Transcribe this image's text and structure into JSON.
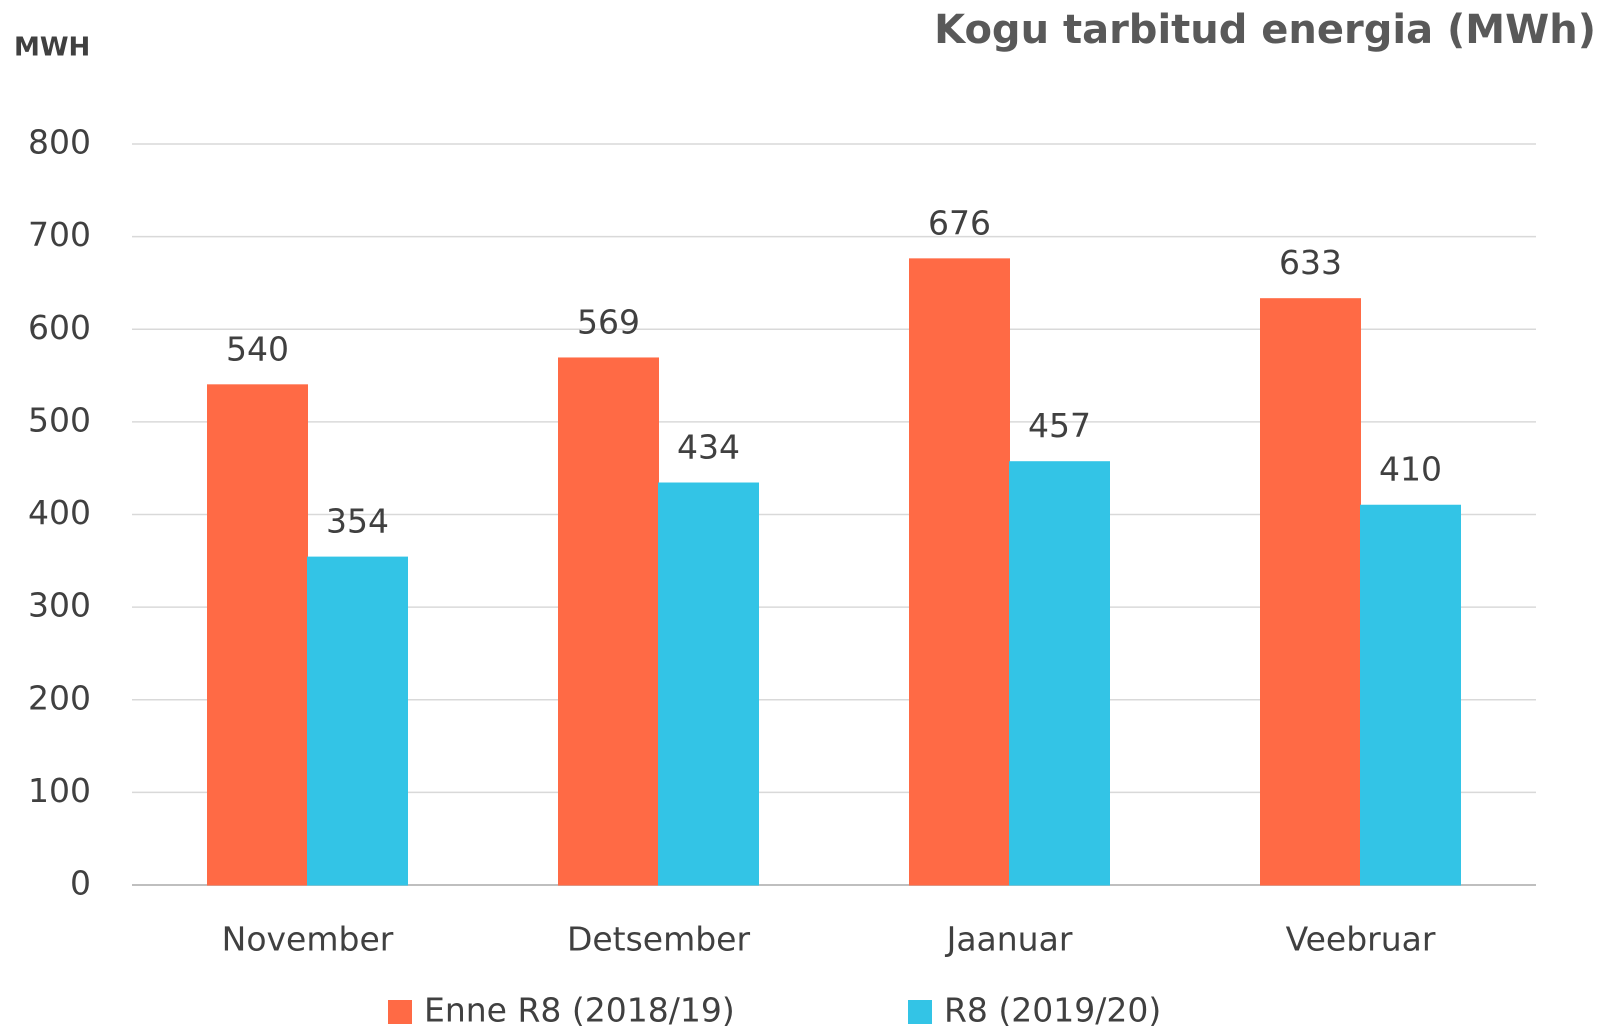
{
  "chart_data": {
    "type": "bar",
    "title": "Kogu tarbitud energia (MWh)",
    "y_label": "MWH",
    "categories": [
      "November",
      "Detsember",
      "Jaanuar",
      "Veebruar"
    ],
    "series": [
      {
        "name": "Enne R8 (2018/19)",
        "color": "#ff6a45",
        "values": [
          540,
          569,
          676,
          633
        ]
      },
      {
        "name": "R8 (2019/20)",
        "color": "#33c4e6",
        "values": [
          354,
          434,
          457,
          410
        ]
      }
    ],
    "ylim": [
      0,
      800
    ],
    "yticks": [
      0,
      100,
      200,
      300,
      400,
      500,
      600,
      700,
      800
    ],
    "grid": true,
    "legend": "bottom"
  }
}
